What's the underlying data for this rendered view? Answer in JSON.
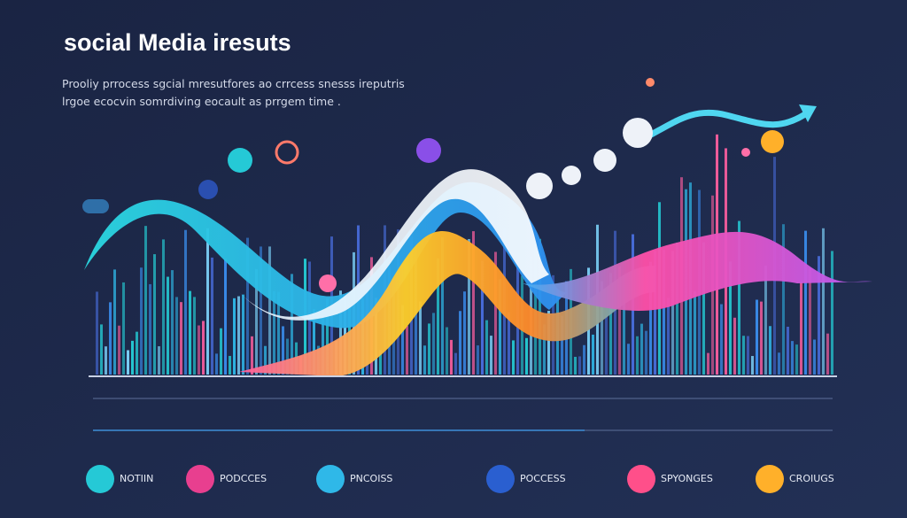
{
  "header": {
    "title": "social Media  iresuts",
    "subtitle": [
      "Prooliy prrocess sgcial mresutfores ao crrcess snesss ireputris",
      "lrgoe ecocvin somrdiving eocault as prrgem time ."
    ]
  },
  "legend": [
    {
      "label": "NOTIIN"
    },
    {
      "label": "PODCCES"
    },
    {
      "label": "PNCOISS"
    },
    {
      "label": "POCCESS"
    },
    {
      "label": "SPYONGES"
    },
    {
      "label": "CROIUGS"
    }
  ]
}
